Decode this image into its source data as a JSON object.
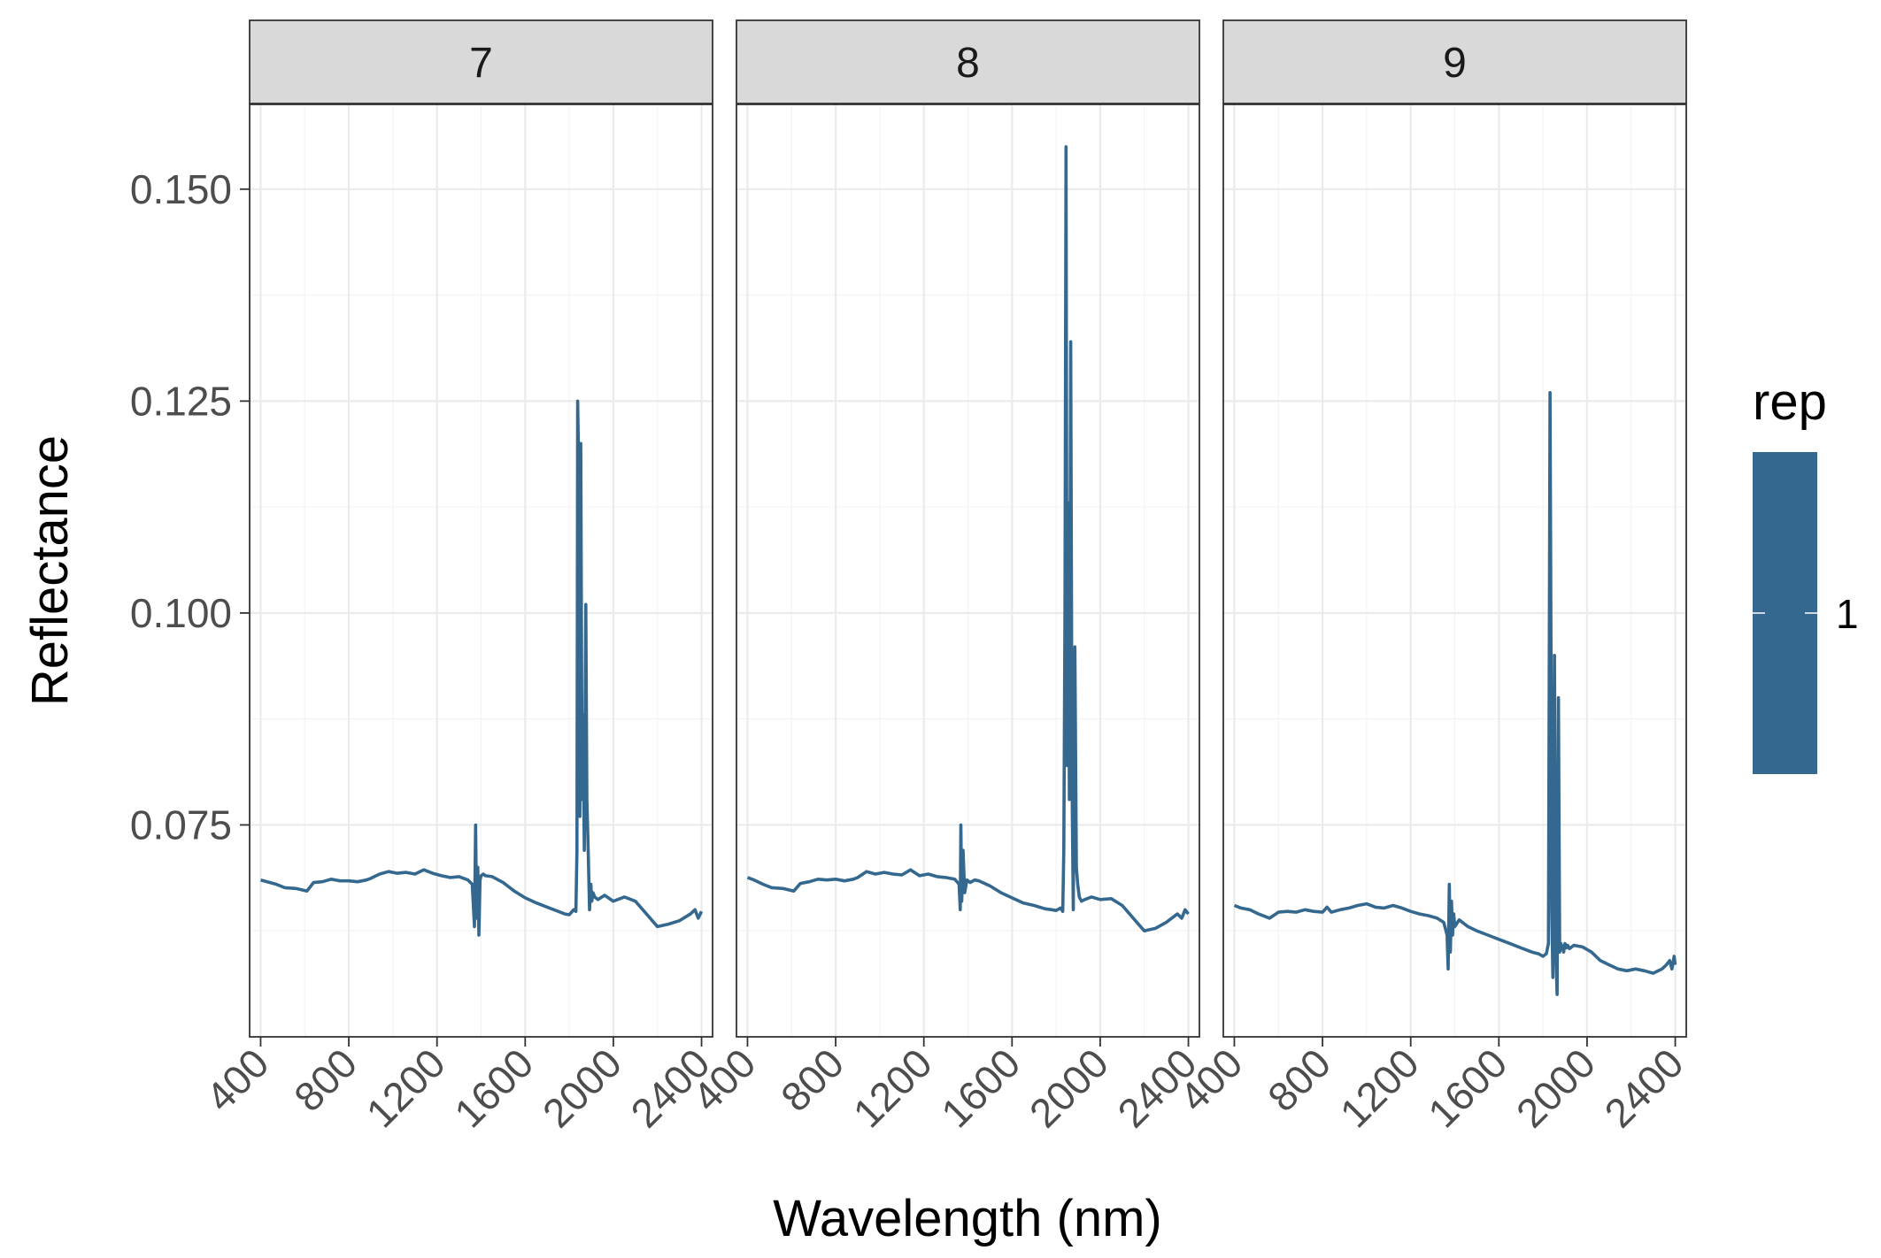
{
  "chart_data": {
    "type": "line",
    "xlabel": "Wavelength (nm)",
    "ylabel": "Reflectance",
    "xlim": [
      350,
      2450
    ],
    "ylim": [
      0.05,
      0.16
    ],
    "x_ticks": [
      400,
      800,
      1200,
      1600,
      2000,
      2400
    ],
    "y_ticks": [
      0.075,
      0.1,
      0.125,
      0.15
    ],
    "y_tick_labels": [
      "0.075",
      "0.100",
      "0.125",
      "0.150"
    ],
    "grid": true,
    "series_color": "#35688f",
    "legend": {
      "title": "rep",
      "labels": [
        "1"
      ],
      "placement": "right",
      "color": "#35688f"
    },
    "panels": [
      {
        "strip": "7",
        "x": [
          400,
          430,
          470,
          510,
          560,
          610,
          640,
          680,
          720,
          760,
          800,
          840,
          880,
          900,
          940,
          980,
          1020,
          1060,
          1100,
          1140,
          1180,
          1220,
          1260,
          1300,
          1340,
          1360,
          1370,
          1375,
          1380,
          1385,
          1390,
          1395,
          1400,
          1410,
          1420,
          1450,
          1500,
          1550,
          1600,
          1650,
          1700,
          1750,
          1780,
          1800,
          1820,
          1830,
          1835,
          1838,
          1842,
          1848,
          1852,
          1858,
          1862,
          1868,
          1875,
          1880,
          1886,
          1892,
          1898,
          1902,
          1908,
          1915,
          1930,
          1960,
          2000,
          2050,
          2100,
          2150,
          2200,
          2250,
          2300,
          2350,
          2370,
          2385,
          2400
        ],
        "y": [
          0.0685,
          0.0683,
          0.068,
          0.0676,
          0.0675,
          0.0672,
          0.0682,
          0.0683,
          0.0686,
          0.0684,
          0.0684,
          0.0683,
          0.0685,
          0.0687,
          0.0692,
          0.0695,
          0.0693,
          0.0694,
          0.0692,
          0.0697,
          0.0693,
          0.069,
          0.0688,
          0.0689,
          0.0685,
          0.068,
          0.063,
          0.075,
          0.064,
          0.07,
          0.062,
          0.0685,
          0.069,
          0.0692,
          0.069,
          0.0689,
          0.0682,
          0.0672,
          0.0664,
          0.0658,
          0.0653,
          0.0648,
          0.0645,
          0.0644,
          0.065,
          0.0648,
          0.072,
          0.125,
          0.118,
          0.076,
          0.12,
          0.078,
          0.088,
          0.072,
          0.101,
          0.078,
          0.072,
          0.065,
          0.068,
          0.066,
          0.067,
          0.0665,
          0.0662,
          0.0667,
          0.066,
          0.0665,
          0.066,
          0.0645,
          0.063,
          0.0633,
          0.0637,
          0.0645,
          0.065,
          0.064,
          0.0648
        ]
      },
      {
        "strip": "8",
        "x": [
          400,
          430,
          470,
          510,
          560,
          610,
          640,
          680,
          720,
          760,
          800,
          840,
          880,
          900,
          940,
          980,
          1020,
          1060,
          1100,
          1140,
          1180,
          1220,
          1260,
          1300,
          1340,
          1360,
          1365,
          1368,
          1372,
          1378,
          1385,
          1395,
          1410,
          1430,
          1450,
          1500,
          1550,
          1600,
          1650,
          1700,
          1750,
          1780,
          1800,
          1820,
          1830,
          1835,
          1840,
          1845,
          1850,
          1855,
          1860,
          1866,
          1872,
          1878,
          1885,
          1892,
          1898,
          1905,
          1915,
          1930,
          1960,
          2000,
          2050,
          2100,
          2150,
          2200,
          2250,
          2300,
          2350,
          2370,
          2385,
          2400
        ],
        "y": [
          0.0688,
          0.0685,
          0.068,
          0.0676,
          0.0675,
          0.0672,
          0.0681,
          0.0683,
          0.0686,
          0.0685,
          0.0686,
          0.0684,
          0.0686,
          0.0688,
          0.0695,
          0.0692,
          0.0694,
          0.0692,
          0.0691,
          0.0697,
          0.069,
          0.0692,
          0.0689,
          0.0688,
          0.0686,
          0.068,
          0.065,
          0.075,
          0.066,
          0.072,
          0.067,
          0.0685,
          0.0682,
          0.0685,
          0.0684,
          0.0678,
          0.067,
          0.0664,
          0.0658,
          0.0655,
          0.0651,
          0.065,
          0.0649,
          0.0652,
          0.0648,
          0.072,
          0.1,
          0.155,
          0.082,
          0.113,
          0.078,
          0.132,
          0.08,
          0.065,
          0.096,
          0.07,
          0.068,
          0.0665,
          0.066,
          0.0662,
          0.0665,
          0.0662,
          0.0663,
          0.0655,
          0.064,
          0.0625,
          0.0628,
          0.0635,
          0.0645,
          0.064,
          0.065,
          0.0645
        ]
      },
      {
        "strip": "9",
        "x": [
          400,
          430,
          470,
          510,
          560,
          600,
          640,
          680,
          720,
          760,
          800,
          820,
          840,
          880,
          920,
          960,
          1000,
          1040,
          1080,
          1120,
          1160,
          1200,
          1240,
          1280,
          1320,
          1350,
          1365,
          1370,
          1375,
          1380,
          1385,
          1390,
          1395,
          1400,
          1420,
          1460,
          1500,
          1550,
          1600,
          1650,
          1700,
          1750,
          1780,
          1800,
          1815,
          1825,
          1832,
          1836,
          1840,
          1845,
          1852,
          1858,
          1864,
          1870,
          1876,
          1882,
          1888,
          1894,
          1900,
          1906,
          1912,
          1920,
          1940,
          1980,
          2020,
          2060,
          2100,
          2140,
          2180,
          2220,
          2260,
          2300,
          2340,
          2360,
          2375,
          2385,
          2395,
          2400
        ],
        "y": [
          0.0655,
          0.0652,
          0.065,
          0.0645,
          0.064,
          0.0647,
          0.0648,
          0.0647,
          0.065,
          0.0648,
          0.0647,
          0.0653,
          0.0647,
          0.065,
          0.0652,
          0.0655,
          0.0657,
          0.0653,
          0.0652,
          0.0655,
          0.0652,
          0.0648,
          0.0645,
          0.0643,
          0.064,
          0.0635,
          0.062,
          0.058,
          0.068,
          0.06,
          0.066,
          0.062,
          0.0645,
          0.063,
          0.0638,
          0.063,
          0.0625,
          0.062,
          0.0615,
          0.061,
          0.0605,
          0.06,
          0.0598,
          0.0595,
          0.0598,
          0.061,
          0.126,
          0.098,
          0.065,
          0.057,
          0.095,
          0.06,
          0.055,
          0.09,
          0.06,
          0.061,
          0.0605,
          0.06,
          0.061,
          0.0605,
          0.0608,
          0.0604,
          0.0608,
          0.0606,
          0.06,
          0.059,
          0.0585,
          0.058,
          0.0578,
          0.058,
          0.0578,
          0.0575,
          0.058,
          0.0585,
          0.059,
          0.058,
          0.0595,
          0.0585
        ]
      }
    ]
  }
}
